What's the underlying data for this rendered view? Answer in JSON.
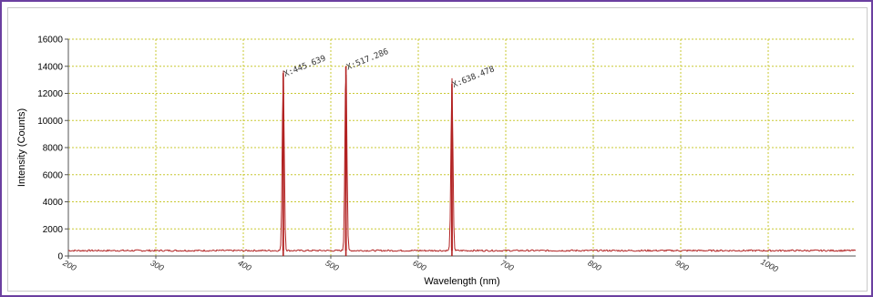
{
  "chart_data": {
    "type": "line",
    "title": "",
    "xlabel": "Wavelength (nm)",
    "ylabel": "Intensity (Counts)",
    "xlim": [
      200,
      1100
    ],
    "ylim": [
      0,
      16000
    ],
    "x_ticks": [
      200,
      300,
      400,
      500,
      600,
      700,
      800,
      900,
      1000
    ],
    "x_tick_labels": [
      "200",
      "300",
      "400",
      "500",
      "600",
      "700",
      "800",
      "900",
      "1000"
    ],
    "y_ticks": [
      0,
      2000,
      4000,
      6000,
      8000,
      10000,
      12000,
      14000,
      16000
    ],
    "y_tick_labels": [
      "0",
      "2000",
      "4000",
      "6000",
      "8000",
      "10000",
      "12000",
      "14000",
      "16000"
    ],
    "grid": true,
    "baseline": 400,
    "series": [
      {
        "color": "#b22222",
        "peaks": [
          {
            "x": 445.639,
            "y": 13500,
            "label": "X:445.639"
          },
          {
            "x": 517.286,
            "y": 14000,
            "label": "X:517.286"
          },
          {
            "x": 638.478,
            "y": 12700,
            "label": "X:638.478"
          }
        ]
      }
    ],
    "colors": {
      "line": "#b22222",
      "grid": "#c8c832",
      "frame": "#6b3fa0"
    }
  }
}
